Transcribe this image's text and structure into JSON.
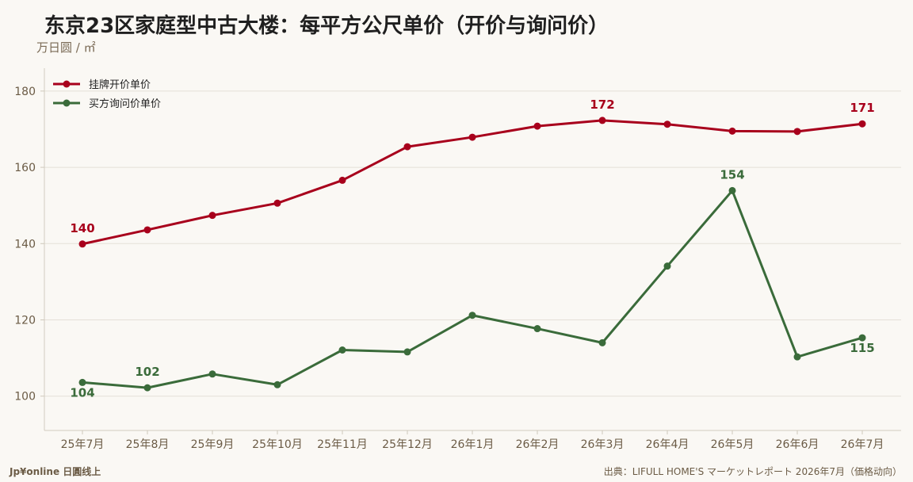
{
  "title": "东京23区家庭型中古大楼：每平方公尺单价（开价与询问价）",
  "unit_label": "万日圆 / ㎡",
  "footer_left": "Jp¥online 日圓线上",
  "footer_right": "出典：LIFULL HOME'S マーケットレポート 2026年7月（価格动向）",
  "chart_data": {
    "type": "line",
    "categories": [
      "25年7月",
      "25年8月",
      "25年9月",
      "25年10月",
      "25年11月",
      "25年12月",
      "26年1月",
      "26年2月",
      "26年3月",
      "26年4月",
      "26年5月",
      "26年6月",
      "26年7月"
    ],
    "ylim": [
      91,
      186
    ],
    "yticks": [
      100,
      120,
      140,
      160,
      180
    ],
    "grid": true,
    "legend_position": "top-left",
    "series": [
      {
        "name": "挂牌开价单价",
        "color": "#a8001c",
        "values": [
          139.9,
          143.6,
          147.4,
          150.6,
          156.6,
          165.4,
          167.9,
          170.8,
          172.3,
          171.3,
          169.5,
          169.4,
          171.4
        ],
        "labels": [
          {
            "index": 0,
            "text": "140",
            "pos": "above"
          },
          {
            "index": 8,
            "text": "172",
            "pos": "above"
          },
          {
            "index": 12,
            "text": "171",
            "pos": "above"
          }
        ]
      },
      {
        "name": "买方询问价单价",
        "color": "#3a6b3a",
        "values": [
          103.6,
          102.2,
          105.8,
          103.0,
          112.1,
          111.6,
          121.2,
          117.7,
          114.0,
          134.1,
          153.9,
          110.3,
          115.3
        ],
        "labels": [
          {
            "index": 0,
            "text": "104",
            "pos": "below"
          },
          {
            "index": 1,
            "text": "102",
            "pos": "above"
          },
          {
            "index": 10,
            "text": "154",
            "pos": "above"
          },
          {
            "index": 12,
            "text": "115",
            "pos": "below"
          }
        ]
      }
    ]
  }
}
